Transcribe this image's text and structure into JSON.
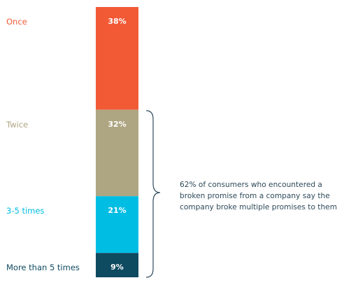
{
  "chart_data": {
    "type": "bar",
    "stacked": true,
    "categories": [
      "Once",
      "Twice",
      "3-5 times",
      "More than 5 times"
    ],
    "values": [
      38,
      32,
      21,
      9
    ],
    "value_labels": [
      "38%",
      "32%",
      "21%",
      "9%"
    ],
    "colors": [
      "#f15a35",
      "#aea582",
      "#00bde3",
      "#0e4a60"
    ],
    "label_colors": [
      "#f15a35",
      "#aea582",
      "#00bde3",
      "#0e4a60"
    ],
    "title": "",
    "xlabel": "",
    "ylabel": "",
    "ylim": [
      0,
      100
    ],
    "annotation": {
      "text": "62% of consumers who encountered a broken promise from a company say the company broke multiple promises to them",
      "brace_covers": [
        "Twice",
        "3-5 times",
        "More than 5 times"
      ]
    }
  }
}
